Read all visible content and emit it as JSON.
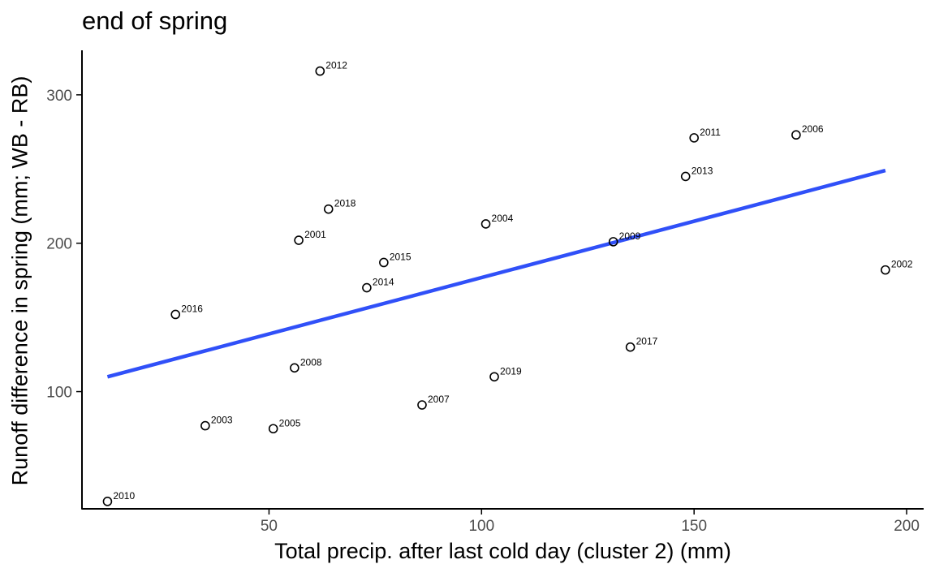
{
  "chart_data": {
    "type": "scatter",
    "title": "end of spring",
    "xlabel": "Total precip. after last cold day (cluster 2) (mm)",
    "ylabel": "Runoff difference in spring (mm; WB - RB)",
    "xlim": [
      6,
      204
    ],
    "ylim": [
      21,
      330
    ],
    "xticks": [
      50,
      100,
      150,
      200
    ],
    "yticks": [
      100,
      200,
      300
    ],
    "grid": false,
    "points": [
      {
        "label": "2012",
        "x": 62,
        "y": 316
      },
      {
        "label": "2011",
        "x": 150,
        "y": 271
      },
      {
        "label": "2006",
        "x": 174,
        "y": 273
      },
      {
        "label": "2013",
        "x": 148,
        "y": 245
      },
      {
        "label": "2018",
        "x": 64,
        "y": 223
      },
      {
        "label": "2004",
        "x": 101,
        "y": 213
      },
      {
        "label": "2001",
        "x": 57,
        "y": 202
      },
      {
        "label": "2009",
        "x": 131,
        "y": 201
      },
      {
        "label": "2015",
        "x": 77,
        "y": 187
      },
      {
        "label": "2002",
        "x": 195,
        "y": 182
      },
      {
        "label": "2014",
        "x": 73,
        "y": 170
      },
      {
        "label": "2016",
        "x": 28,
        "y": 152
      },
      {
        "label": "2017",
        "x": 135,
        "y": 130
      },
      {
        "label": "2008",
        "x": 56,
        "y": 116
      },
      {
        "label": "2019",
        "x": 103,
        "y": 110
      },
      {
        "label": "2007",
        "x": 86,
        "y": 91
      },
      {
        "label": "2003",
        "x": 35,
        "y": 77
      },
      {
        "label": "2005",
        "x": 51,
        "y": 75
      },
      {
        "label": "2010",
        "x": 12,
        "y": 26
      }
    ],
    "trend_line": {
      "x": [
        12,
        195
      ],
      "y": [
        110,
        249
      ],
      "color": "#3050f8"
    },
    "colors": {
      "point_stroke": "#000000",
      "axis": "#000000",
      "tick_label": "#4d4d4d"
    }
  }
}
